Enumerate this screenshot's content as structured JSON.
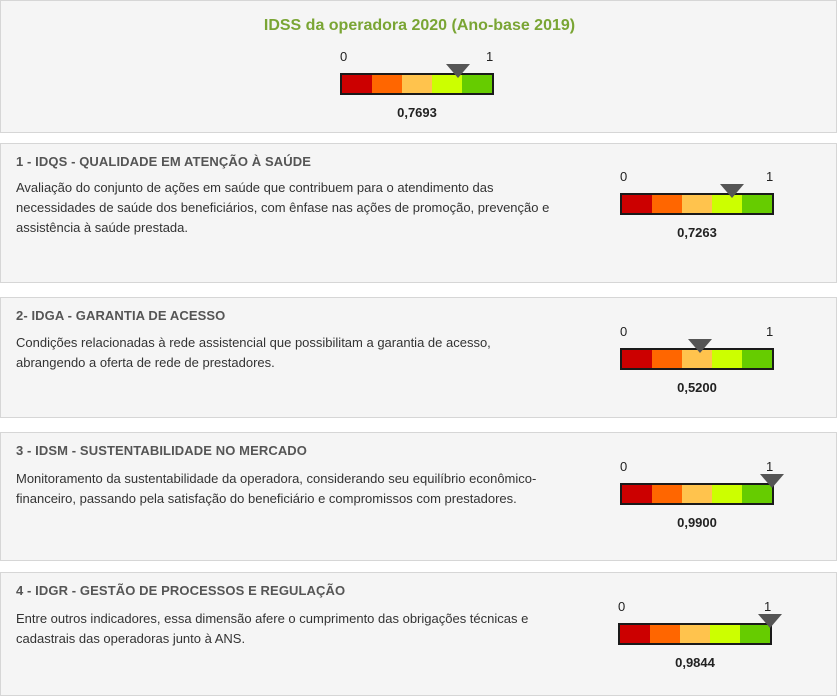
{
  "title": "IDSS da operadora 2020 (Ano-base 2019)",
  "scale": {
    "min_label": "0",
    "max_label": "1",
    "segment_colors": [
      "#cc0000",
      "#ff6600",
      "#ffc34d",
      "#ccff00",
      "#66cc00"
    ]
  },
  "overall": {
    "value_label": "0,7693",
    "value": 0.7693
  },
  "dimensions": [
    {
      "title": "1 - IDQS - QUALIDADE EM ATENÇÃO À SAÚDE",
      "description": "Avaliação do conjunto de ações em saúde que contribuem para o atendimento das necessidades de saúde dos beneficiários, com ênfase nas ações de promoção, prevenção e assistência à saúde prestada.",
      "value_label": "0,7263",
      "value": 0.7263
    },
    {
      "title": "2- IDGA - GARANTIA DE ACESSO",
      "description": "Condições relacionadas à rede assistencial que possibilitam a garantia de acesso, abrangendo a oferta de rede de prestadores.",
      "value_label": "0,5200",
      "value": 0.52
    },
    {
      "title": "3 - IDSM - SUSTENTABILIDADE NO MERCADO",
      "description": "Monitoramento da sustentabilidade da operadora, considerando seu equilíbrio econômico-financeiro, passando pela satisfação do beneficiário e compromissos com prestadores.",
      "value_label": "0,9900",
      "value": 0.99
    },
    {
      "title": "4 - IDGR - GESTÃO DE PROCESSOS E REGULAÇÃO",
      "description": "Entre outros indicadores, essa dimensão afere o cumprimento das obrigações técnicas e cadastrais das operadoras junto à ANS.",
      "value_label": "0,9844",
      "value": 0.9844
    }
  ]
}
